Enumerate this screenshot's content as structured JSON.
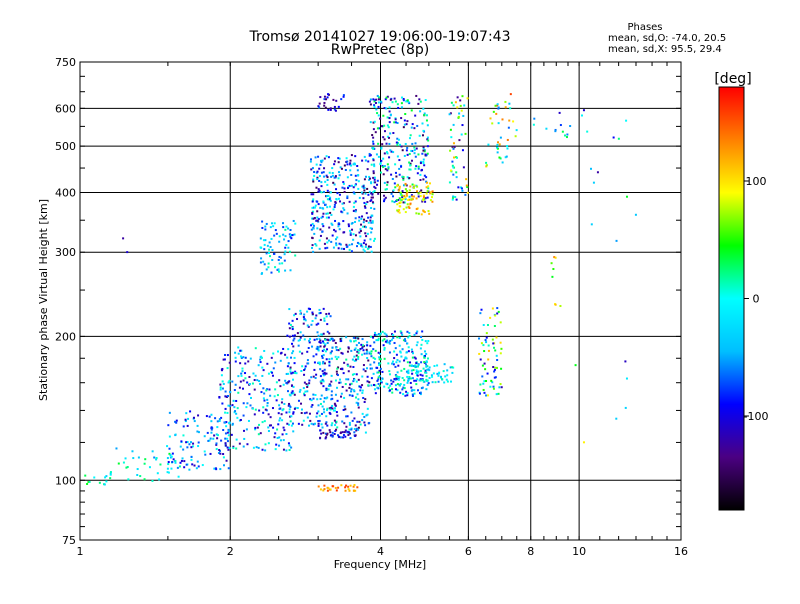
{
  "chart_data": {
    "type": "scatter",
    "title": "Tromsø 20141027 19:06:00-19:07:43",
    "subtitle": "RwPretec (8p)",
    "xlabel": "Frequency [MHz]",
    "ylabel": "Stationary phase Virtual Height [km]",
    "x_scale": "log2",
    "y_scale": "log",
    "xlim": [
      1,
      16
    ],
    "ylim": [
      75,
      750
    ],
    "x_ticks": [
      1,
      2,
      4,
      6,
      8,
      10,
      16
    ],
    "y_ticks": [
      75,
      100,
      200,
      300,
      400,
      500,
      600,
      750
    ],
    "grid": true,
    "stats": {
      "header": "Phases",
      "line1": "mean, sd,O: -74.0, 20.5",
      "line2": "mean, sd,X:  95.5, 29.4"
    },
    "colorbar": {
      "label": "[deg]",
      "range": [
        -180,
        180
      ],
      "ticks": [
        100,
        0,
        -100
      ],
      "colors": [
        "#000000",
        "#4b0082",
        "#0000ff",
        "#00bfff",
        "#00ffff",
        "#00ff00",
        "#ffff00",
        "#ff8000",
        "#ff0000"
      ]
    },
    "clusters": [
      {
        "x": [
          1.0,
          1.15
        ],
        "y": [
          97,
          103
        ],
        "n": 12,
        "phase": [
          -40,
          60
        ]
      },
      {
        "x": [
          1.15,
          1.6
        ],
        "y": [
          98,
          118
        ],
        "n": 40,
        "phase": [
          -60,
          40
        ]
      },
      {
        "x": [
          1.5,
          2.0
        ],
        "y": [
          105,
          140
        ],
        "n": 120,
        "phase": [
          -120,
          10
        ]
      },
      {
        "x": [
          1.9,
          2.7
        ],
        "y": [
          115,
          190
        ],
        "n": 260,
        "phase": [
          -130,
          20
        ]
      },
      {
        "x": [
          2.6,
          3.2
        ],
        "y": [
          130,
          230
        ],
        "n": 220,
        "phase": [
          -140,
          10
        ]
      },
      {
        "x": [
          3.0,
          3.8
        ],
        "y": [
          125,
          200
        ],
        "n": 260,
        "phase": [
          -150,
          20
        ]
      },
      {
        "x": [
          3.8,
          5.0
        ],
        "y": [
          150,
          205
        ],
        "n": 260,
        "phase": [
          -110,
          30
        ]
      },
      {
        "x": [
          4.5,
          5.6
        ],
        "y": [
          160,
          175
        ],
        "n": 60,
        "phase": [
          -60,
          20
        ]
      },
      {
        "x": [
          3.0,
          3.6
        ],
        "y": [
          122,
          128
        ],
        "n": 40,
        "phase": [
          -140,
          -60
        ]
      },
      {
        "x": [
          6.3,
          7.0
        ],
        "y": [
          150,
          230
        ],
        "n": 70,
        "phase": [
          -120,
          120
        ]
      },
      {
        "x": [
          3.0,
          3.6
        ],
        "y": [
          95,
          98
        ],
        "n": 30,
        "phase": [
          100,
          160
        ]
      },
      {
        "x": [
          2.3,
          2.7
        ],
        "y": [
          270,
          350
        ],
        "n": 80,
        "phase": [
          -90,
          20
        ]
      },
      {
        "x": [
          2.9,
          3.9
        ],
        "y": [
          300,
          480
        ],
        "n": 360,
        "phase": [
          -150,
          10
        ]
      },
      {
        "x": [
          3.8,
          5.0
        ],
        "y": [
          380,
          640
        ],
        "n": 300,
        "phase": [
          -150,
          40
        ]
      },
      {
        "x": [
          4.3,
          5.1
        ],
        "y": [
          360,
          420
        ],
        "n": 80,
        "phase": [
          60,
          140
        ]
      },
      {
        "x": [
          3.0,
          3.4
        ],
        "y": [
          590,
          650
        ],
        "n": 25,
        "phase": [
          -150,
          -60
        ]
      },
      {
        "x": [
          5.5,
          6.0
        ],
        "y": [
          380,
          640
        ],
        "n": 60,
        "phase": [
          -140,
          140
        ]
      },
      {
        "x": [
          6.5,
          7.5
        ],
        "y": [
          450,
          650
        ],
        "n": 40,
        "phase": [
          -80,
          160
        ]
      },
      {
        "x": [
          8.0,
          10.5
        ],
        "y": [
          520,
          600
        ],
        "n": 15,
        "phase": [
          -130,
          40
        ]
      },
      {
        "x": [
          8.8,
          9.2
        ],
        "y": [
          230,
          300
        ],
        "n": 8,
        "phase": [
          20,
          140
        ]
      },
      {
        "x": [
          10.5,
          13.5
        ],
        "y": [
          310,
          600
        ],
        "n": 10,
        "phase": [
          -150,
          60
        ]
      },
      {
        "x": [
          9.5,
          12.5
        ],
        "y": [
          115,
          180
        ],
        "n": 6,
        "phase": [
          -120,
          140
        ]
      },
      {
        "x": [
          1.2,
          1.3
        ],
        "y": [
          275,
          325
        ],
        "n": 2,
        "phase": [
          -140,
          -100
        ]
      }
    ]
  }
}
